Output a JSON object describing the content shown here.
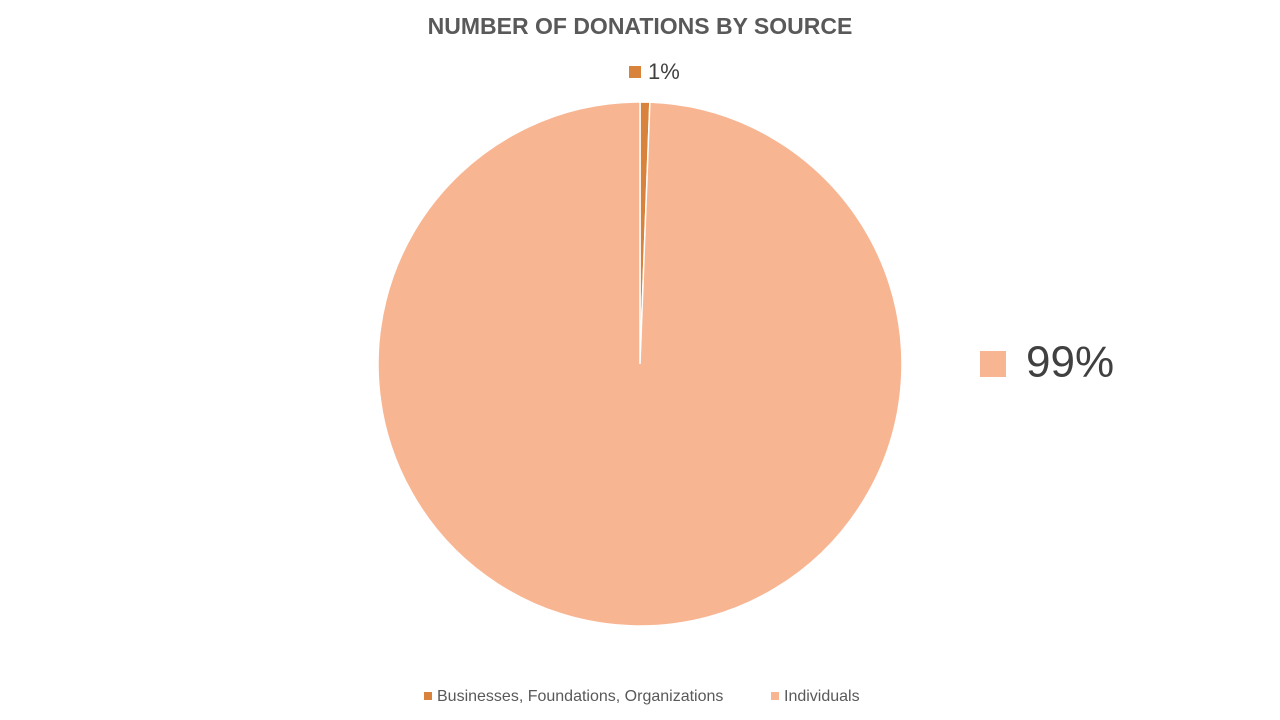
{
  "chart_data": {
    "type": "pie",
    "title": "NUMBER OF DONATIONS BY SOURCE",
    "categories": [
      "Businesses, Foundations, Organizations",
      "Individuals"
    ],
    "values": [
      0.6,
      99.4
    ],
    "value_labels": [
      "1%",
      "99%"
    ],
    "colors": [
      "#d9823b",
      "#f8b592"
    ],
    "legend": "bottom"
  }
}
